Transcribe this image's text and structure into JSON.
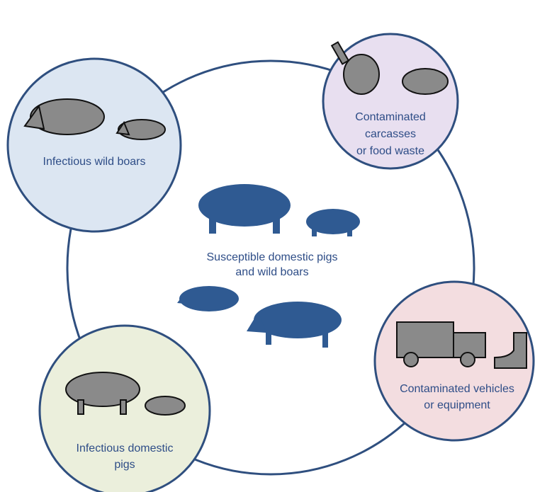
{
  "center": {
    "label_lines": [
      "Susceptible domestic pigs",
      "and wild boars"
    ]
  },
  "nodes": [
    {
      "label_lines": [
        "Infectious wild boars"
      ]
    },
    {
      "label_lines": [
        "Contaminated",
        "carcasses",
        "or food waste"
      ]
    },
    {
      "label_lines": [
        "Contaminated vehicles",
        "or equipment"
      ]
    },
    {
      "label_lines": [
        "Infectious domestic",
        "pigs"
      ]
    }
  ]
}
